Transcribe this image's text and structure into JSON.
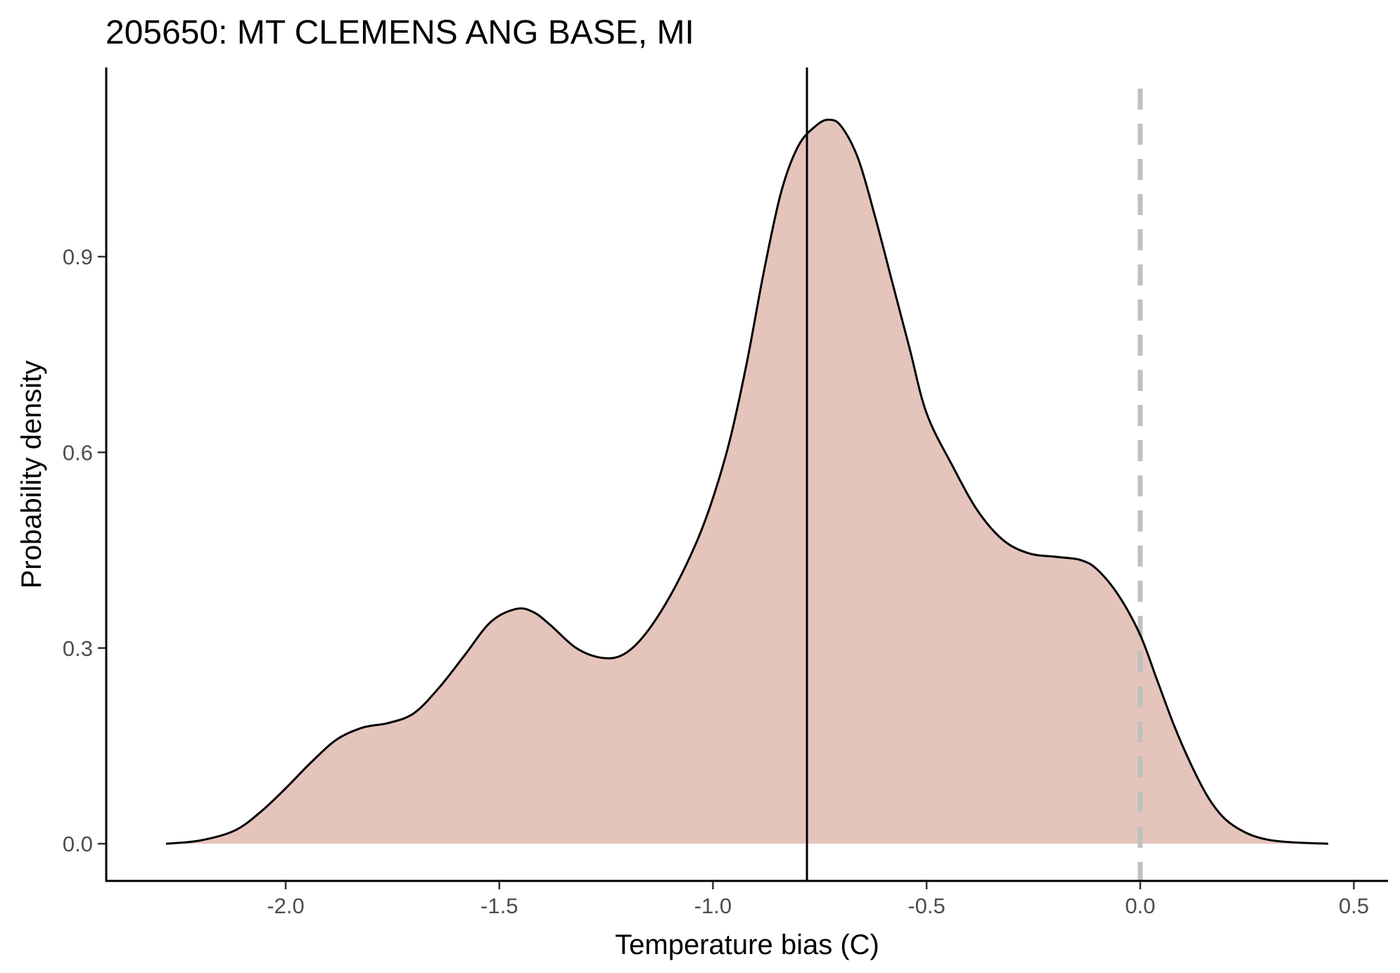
{
  "chart_data": {
    "type": "area",
    "title": "205650: MT CLEMENS ANG BASE, MI",
    "xlabel": "Temperature bias (C)",
    "ylabel": "Probability density",
    "xlim": [
      -2.42,
      0.58
    ],
    "ylim": [
      -0.057,
      1.19
    ],
    "x_ticks": [
      -2.0,
      -1.5,
      -1.0,
      -0.5,
      0.0,
      0.5
    ],
    "x_tick_labels": [
      "-2.0",
      "-1.5",
      "-1.0",
      "-0.5",
      "0.0",
      "0.5"
    ],
    "y_ticks": [
      0.0,
      0.3,
      0.6,
      0.9
    ],
    "y_tick_labels": [
      "0.0",
      "0.3",
      "0.6",
      "0.9"
    ],
    "grid": false,
    "legend": "none",
    "fill_color": "#e5c4bc",
    "line_color": "#000000",
    "mean_line": {
      "x": -0.78,
      "color": "#000000",
      "style": "solid"
    },
    "zero_line": {
      "x": 0.0,
      "color": "#c0c0c0",
      "style": "dashed"
    },
    "series": [
      {
        "x": [
          -2.28,
          -2.2,
          -2.12,
          -2.06,
          -2.0,
          -1.94,
          -1.88,
          -1.82,
          -1.76,
          -1.7,
          -1.64,
          -1.58,
          -1.52,
          -1.46,
          -1.42,
          -1.38,
          -1.32,
          -1.26,
          -1.21,
          -1.16,
          -1.1,
          -1.04,
          -1.0,
          -0.96,
          -0.92,
          -0.88,
          -0.84,
          -0.8,
          -0.76,
          -0.73,
          -0.7,
          -0.66,
          -0.62,
          -0.58,
          -0.54,
          -0.5,
          -0.44,
          -0.38,
          -0.32,
          -0.26,
          -0.2,
          -0.14,
          -0.1,
          -0.05,
          0.0,
          0.04,
          0.08,
          0.12,
          0.16,
          0.2,
          0.25,
          0.3,
          0.36,
          0.44
        ],
        "values": [
          0.0,
          0.005,
          0.02,
          0.048,
          0.085,
          0.125,
          0.16,
          0.178,
          0.185,
          0.2,
          0.24,
          0.29,
          0.34,
          0.36,
          0.355,
          0.335,
          0.3,
          0.285,
          0.29,
          0.32,
          0.38,
          0.46,
          0.53,
          0.62,
          0.74,
          0.88,
          1.0,
          1.07,
          1.1,
          1.11,
          1.1,
          1.05,
          0.96,
          0.86,
          0.76,
          0.66,
          0.58,
          0.51,
          0.465,
          0.445,
          0.44,
          0.435,
          0.42,
          0.38,
          0.32,
          0.25,
          0.18,
          0.12,
          0.07,
          0.037,
          0.016,
          0.006,
          0.002,
          0.0
        ]
      }
    ]
  }
}
